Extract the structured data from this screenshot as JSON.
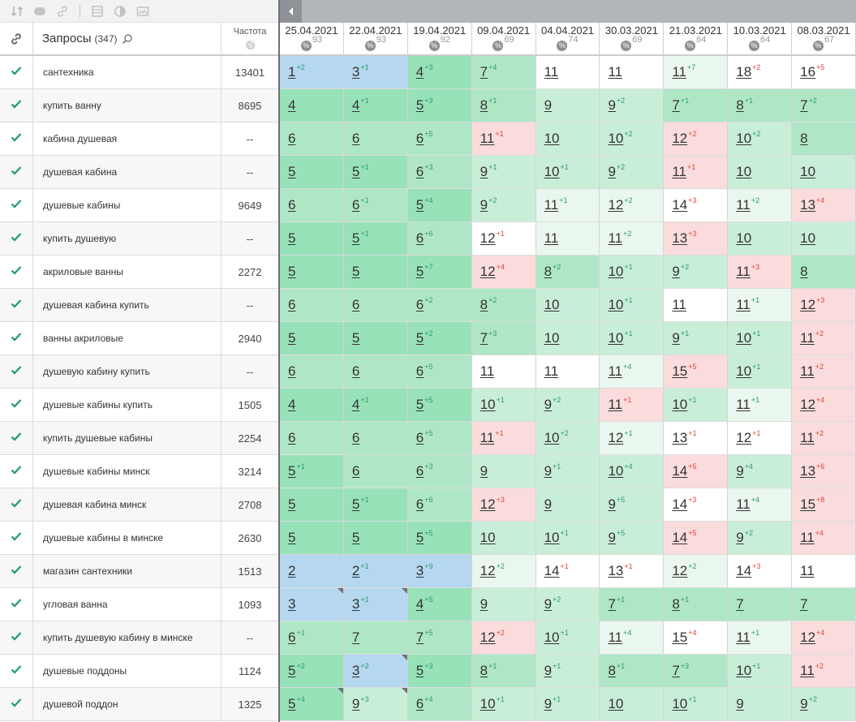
{
  "toolbar": {
    "icons": [
      "sort-icon",
      "toggle-icon",
      "link-icon",
      "table-icon",
      "contrast-icon",
      "image-icon"
    ]
  },
  "header": {
    "query_title": "Запросы",
    "query_count": "(347)",
    "freq_title": "Частота"
  },
  "dates": [
    {
      "date": "25.04.2021",
      "pct": "93"
    },
    {
      "date": "22.04.2021",
      "pct": "93"
    },
    {
      "date": "19.04.2021",
      "pct": "92"
    },
    {
      "date": "09.04.2021",
      "pct": "69"
    },
    {
      "date": "04.04.2021",
      "pct": "74"
    },
    {
      "date": "30.03.2021",
      "pct": "69"
    },
    {
      "date": "21.03.2021",
      "pct": "64"
    },
    {
      "date": "10.03.2021",
      "pct": "64"
    },
    {
      "date": "08.03.2021",
      "pct": "67"
    }
  ],
  "rows": [
    {
      "query": "сантехника",
      "freq": "13401",
      "cells": [
        [
          "1",
          "+2",
          "blue"
        ],
        [
          "3",
          "+1",
          "blue"
        ],
        [
          "4",
          "+3",
          "g3"
        ],
        [
          "7",
          "+4",
          "g2"
        ],
        [
          "11",
          "",
          "white"
        ],
        [
          "11",
          "",
          "white"
        ],
        [
          "11",
          "+7",
          "g0"
        ],
        [
          "18",
          "+2",
          "white"
        ],
        [
          "16",
          "+5",
          "white"
        ]
      ]
    },
    {
      "query": "купить ванну",
      "freq": "8695",
      "cells": [
        [
          "4",
          "",
          "g3"
        ],
        [
          "4",
          "+1",
          "g3"
        ],
        [
          "5",
          "+3",
          "g3"
        ],
        [
          "8",
          "+1",
          "g2"
        ],
        [
          "9",
          "",
          "g1"
        ],
        [
          "9",
          "+2",
          "g1"
        ],
        [
          "7",
          "+1",
          "g2"
        ],
        [
          "8",
          "+1",
          "g2"
        ],
        [
          "7",
          "+2",
          "g2"
        ]
      ]
    },
    {
      "query": "кабина душевая",
      "freq": "--",
      "cells": [
        [
          "6",
          "",
          "g2"
        ],
        [
          "6",
          "",
          "g2"
        ],
        [
          "6",
          "+5",
          "g2"
        ],
        [
          "11",
          "+1",
          "red"
        ],
        [
          "10",
          "",
          "g1"
        ],
        [
          "10",
          "+2",
          "g1"
        ],
        [
          "12",
          "+2",
          "red"
        ],
        [
          "10",
          "+2",
          "g1"
        ],
        [
          "8",
          "",
          "g2"
        ]
      ]
    },
    {
      "query": "душевая кабина",
      "freq": "--",
      "cells": [
        [
          "5",
          "",
          "g3"
        ],
        [
          "5",
          "+1",
          "g3"
        ],
        [
          "6",
          "+3",
          "g2"
        ],
        [
          "9",
          "+1",
          "g1"
        ],
        [
          "10",
          "+1",
          "g1"
        ],
        [
          "9",
          "+2",
          "g1"
        ],
        [
          "11",
          "+1",
          "red"
        ],
        [
          "10",
          "",
          "g1"
        ],
        [
          "10",
          "",
          "g1"
        ]
      ]
    },
    {
      "query": "душевые кабины",
      "freq": "9649",
      "cells": [
        [
          "6",
          "",
          "g2"
        ],
        [
          "6",
          "+1",
          "g2"
        ],
        [
          "5",
          "+4",
          "g3"
        ],
        [
          "9",
          "+2",
          "g1"
        ],
        [
          "11",
          "+1",
          "g0"
        ],
        [
          "12",
          "+2",
          "g0"
        ],
        [
          "14",
          "+3",
          "white"
        ],
        [
          "11",
          "+2",
          "g0"
        ],
        [
          "13",
          "+4",
          "red"
        ]
      ]
    },
    {
      "query": "купить душевую",
      "freq": "--",
      "cells": [
        [
          "5",
          "",
          "g3"
        ],
        [
          "5",
          "+1",
          "g3"
        ],
        [
          "6",
          "+6",
          "g2"
        ],
        [
          "12",
          "+1",
          "white"
        ],
        [
          "11",
          "",
          "g0"
        ],
        [
          "11",
          "+2",
          "g0"
        ],
        [
          "13",
          "+3",
          "red"
        ],
        [
          "10",
          "",
          "g1"
        ],
        [
          "10",
          "",
          "g1"
        ]
      ]
    },
    {
      "query": "акриловые ванны",
      "freq": "2272",
      "cells": [
        [
          "5",
          "",
          "g3"
        ],
        [
          "5",
          "",
          "g3"
        ],
        [
          "5",
          "+7",
          "g3"
        ],
        [
          "12",
          "+4",
          "red"
        ],
        [
          "8",
          "+2",
          "g2"
        ],
        [
          "10",
          "+1",
          "g1"
        ],
        [
          "9",
          "+2",
          "g1"
        ],
        [
          "11",
          "+3",
          "red"
        ],
        [
          "8",
          "",
          "g2"
        ]
      ]
    },
    {
      "query": "душевая кабина купить",
      "freq": "--",
      "cells": [
        [
          "6",
          "",
          "g2"
        ],
        [
          "6",
          "",
          "g2"
        ],
        [
          "6",
          "+2",
          "g2"
        ],
        [
          "8",
          "+2",
          "g2"
        ],
        [
          "10",
          "",
          "g1"
        ],
        [
          "10",
          "+1",
          "g1"
        ],
        [
          "11",
          "",
          "white"
        ],
        [
          "11",
          "+1",
          "g0"
        ],
        [
          "12",
          "+3",
          "red"
        ]
      ]
    },
    {
      "query": "ванны акриловые",
      "freq": "2940",
      "cells": [
        [
          "5",
          "",
          "g3"
        ],
        [
          "5",
          "",
          "g3"
        ],
        [
          "5",
          "+2",
          "g3"
        ],
        [
          "7",
          "+3",
          "g2"
        ],
        [
          "10",
          "",
          "g1"
        ],
        [
          "10",
          "+1",
          "g1"
        ],
        [
          "9",
          "+1",
          "g1"
        ],
        [
          "10",
          "+1",
          "g1"
        ],
        [
          "11",
          "+2",
          "red"
        ]
      ]
    },
    {
      "query": "душевую кабину купить",
      "freq": "--",
      "cells": [
        [
          "6",
          "",
          "g2"
        ],
        [
          "6",
          "",
          "g2"
        ],
        [
          "6",
          "+5",
          "g2"
        ],
        [
          "11",
          "",
          "white"
        ],
        [
          "11",
          "",
          "white"
        ],
        [
          "11",
          "+4",
          "g0"
        ],
        [
          "15",
          "+5",
          "red"
        ],
        [
          "10",
          "+1",
          "g1"
        ],
        [
          "11",
          "+2",
          "red"
        ]
      ]
    },
    {
      "query": "душевые кабины купить",
      "freq": "1505",
      "cells": [
        [
          "4",
          "",
          "g3"
        ],
        [
          "4",
          "+1",
          "g3"
        ],
        [
          "5",
          "+5",
          "g3"
        ],
        [
          "10",
          "+1",
          "g1"
        ],
        [
          "9",
          "+2",
          "g1"
        ],
        [
          "11",
          "+1",
          "red"
        ],
        [
          "10",
          "+1",
          "g1"
        ],
        [
          "11",
          "+1",
          "g0"
        ],
        [
          "12",
          "+4",
          "red"
        ]
      ]
    },
    {
      "query": "купить душевые кабины",
      "freq": "2254",
      "cells": [
        [
          "6",
          "",
          "g2"
        ],
        [
          "6",
          "",
          "g2"
        ],
        [
          "6",
          "+5",
          "g2"
        ],
        [
          "11",
          "+1",
          "red"
        ],
        [
          "10",
          "+2",
          "g1"
        ],
        [
          "12",
          "+1",
          "g0"
        ],
        [
          "13",
          "+1",
          "white"
        ],
        [
          "12",
          "+1",
          "white"
        ],
        [
          "11",
          "+2",
          "red"
        ]
      ]
    },
    {
      "query": "душевые кабины минск",
      "freq": "3214",
      "cells": [
        [
          "5",
          "+1",
          "g3"
        ],
        [
          "6",
          "",
          "g2"
        ],
        [
          "6",
          "+3",
          "g2"
        ],
        [
          "9",
          "",
          "g1"
        ],
        [
          "9",
          "+1",
          "g1"
        ],
        [
          "10",
          "+4",
          "g1"
        ],
        [
          "14",
          "+5",
          "red"
        ],
        [
          "9",
          "+4",
          "g1"
        ],
        [
          "13",
          "+6",
          "red"
        ]
      ]
    },
    {
      "query": "душевая кабина минск",
      "freq": "2708",
      "cells": [
        [
          "5",
          "",
          "g3"
        ],
        [
          "5",
          "+1",
          "g3"
        ],
        [
          "6",
          "+6",
          "g2"
        ],
        [
          "12",
          "+3",
          "red"
        ],
        [
          "9",
          "",
          "g1"
        ],
        [
          "9",
          "+5",
          "g1"
        ],
        [
          "14",
          "+3",
          "white"
        ],
        [
          "11",
          "+4",
          "g0"
        ],
        [
          "15",
          "+8",
          "red"
        ]
      ]
    },
    {
      "query": "душевые кабины в минске",
      "freq": "2630",
      "cells": [
        [
          "5",
          "",
          "g3"
        ],
        [
          "5",
          "",
          "g3"
        ],
        [
          "5",
          "+5",
          "g3"
        ],
        [
          "10",
          "",
          "g1"
        ],
        [
          "10",
          "+1",
          "g1"
        ],
        [
          "9",
          "+5",
          "g1"
        ],
        [
          "14",
          "+5",
          "red"
        ],
        [
          "9",
          "+2",
          "g1"
        ],
        [
          "11",
          "+4",
          "red"
        ]
      ]
    },
    {
      "query": "магазин сантехники",
      "freq": "1513",
      "cells": [
        [
          "2",
          "",
          "blue"
        ],
        [
          "2",
          "+1",
          "blue"
        ],
        [
          "3",
          "+9",
          "blue"
        ],
        [
          "12",
          "+2",
          "g0"
        ],
        [
          "14",
          "+1",
          "white"
        ],
        [
          "13",
          "+1",
          "white"
        ],
        [
          "12",
          "+2",
          "g0"
        ],
        [
          "14",
          "+3",
          "white"
        ],
        [
          "11",
          "",
          "white"
        ]
      ]
    },
    {
      "query": "угловая ванна",
      "freq": "1093",
      "cells": [
        [
          "3",
          "",
          "blue"
        ],
        [
          "3",
          "+1",
          "blue"
        ],
        [
          "4",
          "+5",
          "g3"
        ],
        [
          "9",
          "",
          "g1"
        ],
        [
          "9",
          "+2",
          "g1"
        ],
        [
          "7",
          "+1",
          "g2"
        ],
        [
          "8",
          "+1",
          "g2"
        ],
        [
          "7",
          "",
          "g2"
        ],
        [
          "7",
          "",
          "g2"
        ]
      ]
    },
    {
      "query": "купить душевую кабину в минске",
      "freq": "--",
      "cells": [
        [
          "6",
          "+1",
          "g2"
        ],
        [
          "7",
          "",
          "g2"
        ],
        [
          "7",
          "+5",
          "g2"
        ],
        [
          "12",
          "+2",
          "red"
        ],
        [
          "10",
          "+1",
          "g1"
        ],
        [
          "11",
          "+4",
          "g0"
        ],
        [
          "15",
          "+4",
          "white"
        ],
        [
          "11",
          "+1",
          "g0"
        ],
        [
          "12",
          "+4",
          "red"
        ]
      ]
    },
    {
      "query": "душевые поддоны",
      "freq": "1124",
      "cells": [
        [
          "5",
          "+2",
          "g3"
        ],
        [
          "3",
          "+2",
          "blue"
        ],
        [
          "5",
          "+3",
          "g3"
        ],
        [
          "8",
          "+1",
          "g2"
        ],
        [
          "9",
          "+1",
          "g1"
        ],
        [
          "8",
          "+1",
          "g2"
        ],
        [
          "7",
          "+3",
          "g2"
        ],
        [
          "10",
          "+1",
          "g1"
        ],
        [
          "11",
          "+2",
          "red"
        ]
      ]
    },
    {
      "query": "душевой поддон",
      "freq": "1325",
      "cells": [
        [
          "5",
          "+4",
          "g3"
        ],
        [
          "9",
          "+3",
          "g1"
        ],
        [
          "6",
          "+4",
          "g2"
        ],
        [
          "10",
          "+1",
          "g1"
        ],
        [
          "9",
          "+1",
          "g1"
        ],
        [
          "10",
          "",
          "g1"
        ],
        [
          "10",
          "+1",
          "g1"
        ],
        [
          "9",
          "",
          "g1"
        ],
        [
          "9",
          "+2",
          "g1"
        ]
      ]
    }
  ],
  "colors": {
    "blue": "#b5d7ef",
    "g3": "#97e2b9",
    "g2": "#afe7c6",
    "g1": "#c9eed8",
    "g0": "#eaf7ef",
    "white": "#ffffff",
    "red": "#fadcdc",
    "delta_up": "#2e9a6c",
    "delta_down": "#e0433c",
    "check": "#1f9c6a"
  }
}
